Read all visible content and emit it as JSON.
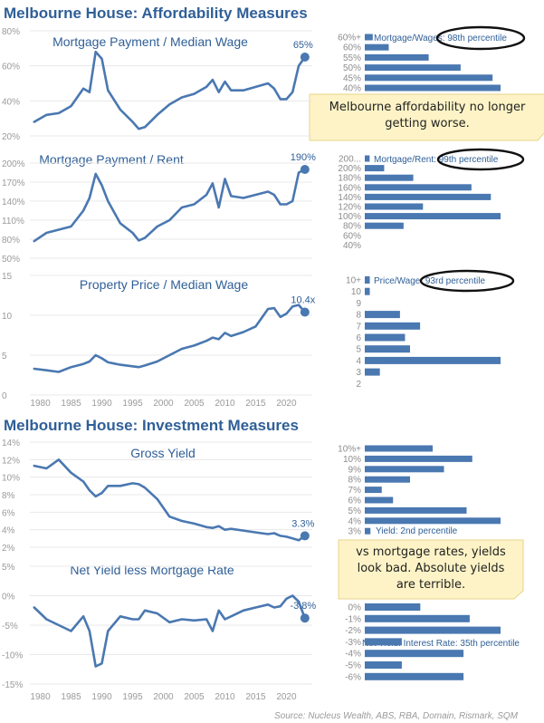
{
  "sections": [
    {
      "title": "Melbourne House: Affordability Measures"
    },
    {
      "title": "Melbourne House: Investment Measures"
    }
  ],
  "source": "Source: Nucleus Wealth, ABS, RBA, Domain, Rismark, SQM",
  "x_ticks": [
    "1980",
    "1985",
    "1990",
    "1995",
    "2000",
    "2005",
    "2010",
    "2015",
    "2020"
  ],
  "notes": [
    {
      "lines": [
        "Melbourne affordability no longer",
        "getting worse."
      ]
    },
    {
      "lines": [
        "vs mortgage rates, yields",
        "look bad. Absolute yields",
        "are terrible."
      ]
    }
  ],
  "colors": {
    "series": "#4a78b1",
    "title": "#2f5f97",
    "note": "#fdf3c6"
  },
  "chart_data": [
    {
      "type": "line",
      "title": "Mortgage Payment / Median Wage",
      "y_ticks": [
        "80%",
        "60%",
        "40%",
        "20%"
      ],
      "ylim": [
        20,
        80
      ],
      "end_label": "65%",
      "series": [
        {
          "x": [
            1979,
            1981,
            1983,
            1985,
            1987,
            1988,
            1989,
            1990,
            1991,
            1993,
            1995,
            1996,
            1997,
            1999,
            2001,
            2003,
            2005,
            2007,
            2008,
            2009,
            2010,
            2011,
            2013,
            2015,
            2017,
            2018,
            2019,
            2020,
            2021,
            2022,
            2023
          ],
          "y": [
            28,
            32,
            33,
            37,
            47,
            45,
            68,
            64,
            46,
            35,
            28,
            24,
            25,
            32,
            38,
            42,
            44,
            48,
            52,
            45,
            51,
            46,
            46,
            48,
            50,
            47,
            41,
            41,
            45,
            60,
            65
          ]
        }
      ]
    },
    {
      "type": "line",
      "title": "Mortgage Payment / Rent",
      "y_ticks": [
        "200%",
        "170%",
        "140%",
        "110%",
        "80%",
        "50%"
      ],
      "ylim": [
        50,
        200
      ],
      "end_label": "190%",
      "series": [
        {
          "x": [
            1979,
            1981,
            1983,
            1985,
            1987,
            1988,
            1989,
            1990,
            1991,
            1993,
            1995,
            1996,
            1997,
            1999,
            2001,
            2003,
            2005,
            2007,
            2008,
            2009,
            2010,
            2011,
            2013,
            2015,
            2017,
            2018,
            2019,
            2020,
            2021,
            2022,
            2023
          ],
          "y": [
            77,
            90,
            95,
            100,
            125,
            145,
            183,
            165,
            140,
            105,
            90,
            78,
            82,
            100,
            110,
            130,
            135,
            150,
            168,
            130,
            175,
            148,
            145,
            150,
            155,
            150,
            135,
            135,
            140,
            185,
            190
          ]
        }
      ]
    },
    {
      "type": "line",
      "title": "Property Price / Median Wage",
      "y_ticks": [
        "15",
        "10",
        "5",
        "0"
      ],
      "ylim": [
        0,
        15
      ],
      "end_label": "10.4x",
      "series": [
        {
          "x": [
            1979,
            1981,
            1983,
            1985,
            1987,
            1988,
            1989,
            1990,
            1991,
            1993,
            1995,
            1996,
            1997,
            1999,
            2001,
            2003,
            2005,
            2007,
            2008,
            2009,
            2010,
            2011,
            2013,
            2015,
            2017,
            2018,
            2019,
            2020,
            2021,
            2022,
            2023
          ],
          "y": [
            3.3,
            3.1,
            2.9,
            3.5,
            3.9,
            4.2,
            5.0,
            4.6,
            4.1,
            3.8,
            3.6,
            3.5,
            3.7,
            4.2,
            5.0,
            5.8,
            6.2,
            6.8,
            7.2,
            7.0,
            7.8,
            7.4,
            7.9,
            8.6,
            10.8,
            10.9,
            9.8,
            10.2,
            11.1,
            11.3,
            10.4
          ]
        }
      ]
    },
    {
      "type": "line",
      "title": "Gross Yield",
      "y_ticks": [
        "14%",
        "12%",
        "10%",
        "8%",
        "6%",
        "4%",
        "2%"
      ],
      "ylim": [
        2,
        14
      ],
      "end_label": "3.3%",
      "series": [
        {
          "x": [
            1979,
            1981,
            1983,
            1985,
            1987,
            1988,
            1989,
            1990,
            1991,
            1993,
            1995,
            1996,
            1997,
            1999,
            2001,
            2003,
            2005,
            2007,
            2008,
            2009,
            2010,
            2011,
            2013,
            2015,
            2017,
            2018,
            2019,
            2020,
            2021,
            2022,
            2023
          ],
          "y": [
            11.3,
            11.0,
            12.0,
            10.5,
            9.5,
            8.5,
            7.8,
            8.2,
            9.0,
            9.0,
            9.3,
            9.2,
            8.8,
            7.5,
            5.5,
            5.0,
            4.7,
            4.3,
            4.2,
            4.4,
            4.0,
            4.1,
            3.9,
            3.7,
            3.5,
            3.6,
            3.3,
            3.2,
            3.0,
            2.8,
            3.3
          ]
        }
      ]
    },
    {
      "type": "line",
      "title": "Net Yield less Mortgage Rate",
      "y_ticks": [
        "5%",
        "0%",
        "-5%",
        "-10%",
        "-15%"
      ],
      "ylim": [
        -15,
        5
      ],
      "end_label": "-3.8%",
      "series": [
        {
          "x": [
            1979,
            1981,
            1983,
            1985,
            1987,
            1988,
            1989,
            1990,
            1991,
            1993,
            1995,
            1996,
            1997,
            1999,
            2001,
            2003,
            2005,
            2007,
            2008,
            2009,
            2010,
            2011,
            2013,
            2015,
            2017,
            2018,
            2019,
            2020,
            2021,
            2022,
            2023
          ],
          "y": [
            -2.0,
            -4.0,
            -5.0,
            -6.0,
            -3.5,
            -6.0,
            -12.0,
            -11.5,
            -6.0,
            -3.5,
            -4.0,
            -4.0,
            -2.5,
            -3.0,
            -4.5,
            -4.0,
            -4.2,
            -4.0,
            -6.0,
            -2.5,
            -4.0,
            -3.5,
            -2.5,
            -2.0,
            -1.5,
            -2.0,
            -1.8,
            -0.5,
            0.0,
            -1.0,
            -3.8
          ]
        }
      ]
    },
    {
      "type": "bar",
      "orientation": "horizontal",
      "title": "Mortgage/Wages: 98th percentile",
      "categories": [
        "60%+",
        "60%",
        "55%",
        "50%",
        "45%",
        "40%"
      ],
      "values": [
        1,
        3,
        8,
        12,
        16,
        17
      ]
    },
    {
      "type": "bar",
      "orientation": "horizontal",
      "title": "Mortgage/Rent: 99th percentile",
      "categories": [
        "200...",
        "200%",
        "180%",
        "160%",
        "140%",
        "120%",
        "100%",
        "80%",
        "60%",
        "40%"
      ],
      "values": [
        1,
        4,
        10,
        22,
        26,
        12,
        28,
        8,
        0,
        0
      ]
    },
    {
      "type": "bar",
      "orientation": "horizontal",
      "title": "Price/Wage: 93rd percentile",
      "categories": [
        "10+",
        "10",
        "9",
        "8",
        "7",
        "6",
        "5",
        "4",
        "3",
        "2"
      ],
      "values": [
        1,
        1,
        0,
        7,
        11,
        8,
        9,
        27,
        3,
        0
      ]
    },
    {
      "type": "bar",
      "orientation": "horizontal",
      "title": "Yield: 2nd percentile",
      "categories": [
        "10%+",
        "10%",
        "9%",
        "8%",
        "7%",
        "6%",
        "5%",
        "4%",
        "3%"
      ],
      "values": [
        12,
        19,
        14,
        8,
        3,
        5,
        18,
        24,
        1
      ]
    },
    {
      "type": "bar",
      "orientation": "horizontal",
      "title": "Net Yield: Interest Rate: 35th percentile",
      "categories": [
        "0%",
        "-1%",
        "-2%",
        "-3%",
        "-4%",
        "-5%",
        "-6%"
      ],
      "values": [
        9,
        17,
        22,
        6,
        16,
        6,
        16
      ]
    }
  ]
}
